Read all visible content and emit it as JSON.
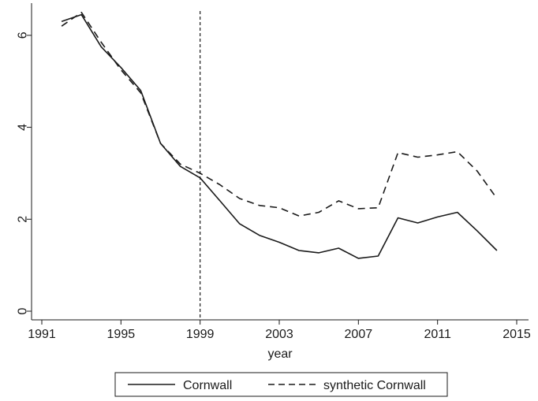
{
  "chart_data": {
    "type": "line",
    "xlabel": "year",
    "ylabel": "",
    "xlim": [
      1991,
      2015
    ],
    "ylim": [
      0,
      6.7
    ],
    "x_ticks": [
      1991,
      1995,
      1999,
      2003,
      2007,
      2011,
      2015
    ],
    "y_ticks": [
      0,
      2,
      4,
      6
    ],
    "vertical_reference_line": 1999,
    "legend_position": "bottom",
    "grid": false,
    "series": [
      {
        "name": "Cornwall",
        "style": "solid",
        "color": "#1a1a1a",
        "x": [
          1992,
          1993,
          1994,
          1995,
          1996,
          1997,
          1998,
          1999,
          2000,
          2001,
          2002,
          2003,
          2004,
          2005,
          2006,
          2007,
          2008,
          2009,
          2010,
          2011,
          2012,
          2013,
          2014
        ],
        "y": [
          6.3,
          6.45,
          5.75,
          5.3,
          4.8,
          3.65,
          3.15,
          2.9,
          2.4,
          1.9,
          1.65,
          1.5,
          1.32,
          1.27,
          1.37,
          1.15,
          1.2,
          2.03,
          1.92,
          2.05,
          2.15,
          1.75,
          1.32
        ]
      },
      {
        "name": "synthetic Cornwall",
        "style": "dashed",
        "color": "#1a1a1a",
        "x": [
          1992,
          1993,
          1994,
          1995,
          1996,
          1997,
          1998,
          1999,
          2000,
          2001,
          2002,
          2003,
          2004,
          2005,
          2006,
          2007,
          2008,
          2009,
          2010,
          2011,
          2012,
          2013,
          2014
        ],
        "y": [
          6.2,
          6.5,
          5.85,
          5.25,
          4.75,
          3.65,
          3.2,
          3.0,
          2.75,
          2.45,
          2.3,
          2.25,
          2.07,
          2.15,
          2.4,
          2.23,
          2.25,
          3.45,
          3.35,
          3.4,
          3.47,
          3.05,
          2.45
        ]
      }
    ]
  }
}
